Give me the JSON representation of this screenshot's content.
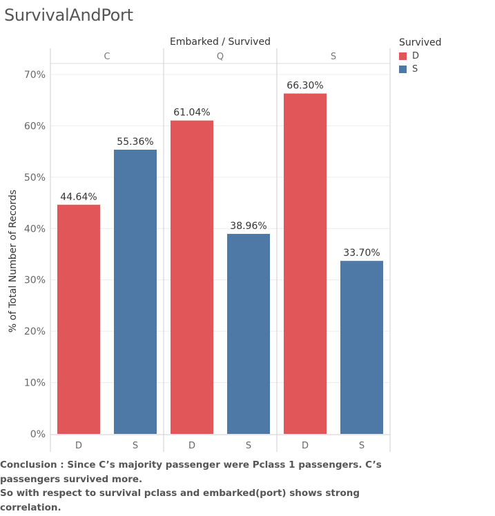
{
  "title": "SurvivalAndPort",
  "conclusion": [
    "Conclusion : Since C’s majority passenger were Pclass 1 passengers. C’s",
    "passengers survived more.",
    "So with respect to survival pclass and embarked(port) shows strong",
    "correlation."
  ],
  "legend": {
    "title": "Survived",
    "items": [
      {
        "label": "D",
        "color": "#e15759"
      },
      {
        "label": "S",
        "color": "#4e79a7"
      }
    ]
  },
  "chart_data": {
    "type": "bar",
    "column_header": "Embarked / Survived",
    "ylabel": "% of Total Number of Records",
    "ylim": [
      0,
      70
    ],
    "yticks": [
      "0%",
      "10%",
      "20%",
      "30%",
      "40%",
      "50%",
      "60%",
      "70%"
    ],
    "ytick_values": [
      0,
      10,
      20,
      30,
      40,
      50,
      60,
      70
    ],
    "gridlines": true,
    "legend_position": "top-right",
    "panels": [
      {
        "name": "C",
        "categories": [
          "D",
          "S"
        ],
        "values": [
          44.64,
          55.36
        ],
        "labels": [
          "44.64%",
          "55.36%"
        ]
      },
      {
        "name": "Q",
        "categories": [
          "D",
          "S"
        ],
        "values": [
          61.04,
          38.96
        ],
        "labels": [
          "61.04%",
          "38.96%"
        ]
      },
      {
        "name": "S",
        "categories": [
          "D",
          "S"
        ],
        "values": [
          66.3,
          33.7
        ],
        "labels": [
          "66.30%",
          "33.70%"
        ]
      }
    ],
    "colors": {
      "D": "#e15759",
      "S": "#4e79a7"
    }
  }
}
